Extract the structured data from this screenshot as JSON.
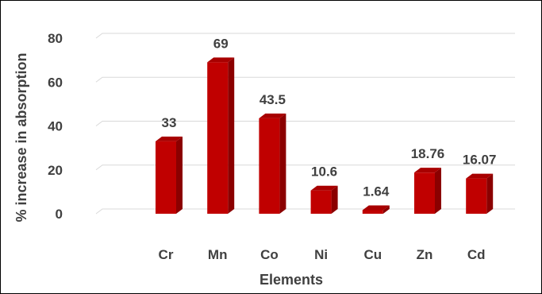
{
  "chart_data": {
    "type": "bar",
    "style": "3d-column",
    "title": "",
    "xlabel": "Elements",
    "ylabel": "% increase in absorption",
    "categories": [
      "Cr",
      "Mn",
      "Co",
      "Ni",
      "Cu",
      "Zn",
      "Cd"
    ],
    "values": [
      33,
      69,
      43.5,
      10.6,
      1.64,
      18.76,
      16.07
    ],
    "data_labels": [
      "33",
      "69",
      "43.5",
      "10.6",
      "1.64",
      "18.76",
      "16.07"
    ],
    "ylim": [
      0,
      80
    ],
    "yticks": [
      0,
      20,
      40,
      60,
      80
    ],
    "grid": true,
    "legend": "none",
    "colors": {
      "bar_front": "#c00000",
      "bar_side": "#8b0000",
      "bar_top": "#a80000",
      "grid": "#d9d9d9",
      "text": "#404040"
    }
  }
}
